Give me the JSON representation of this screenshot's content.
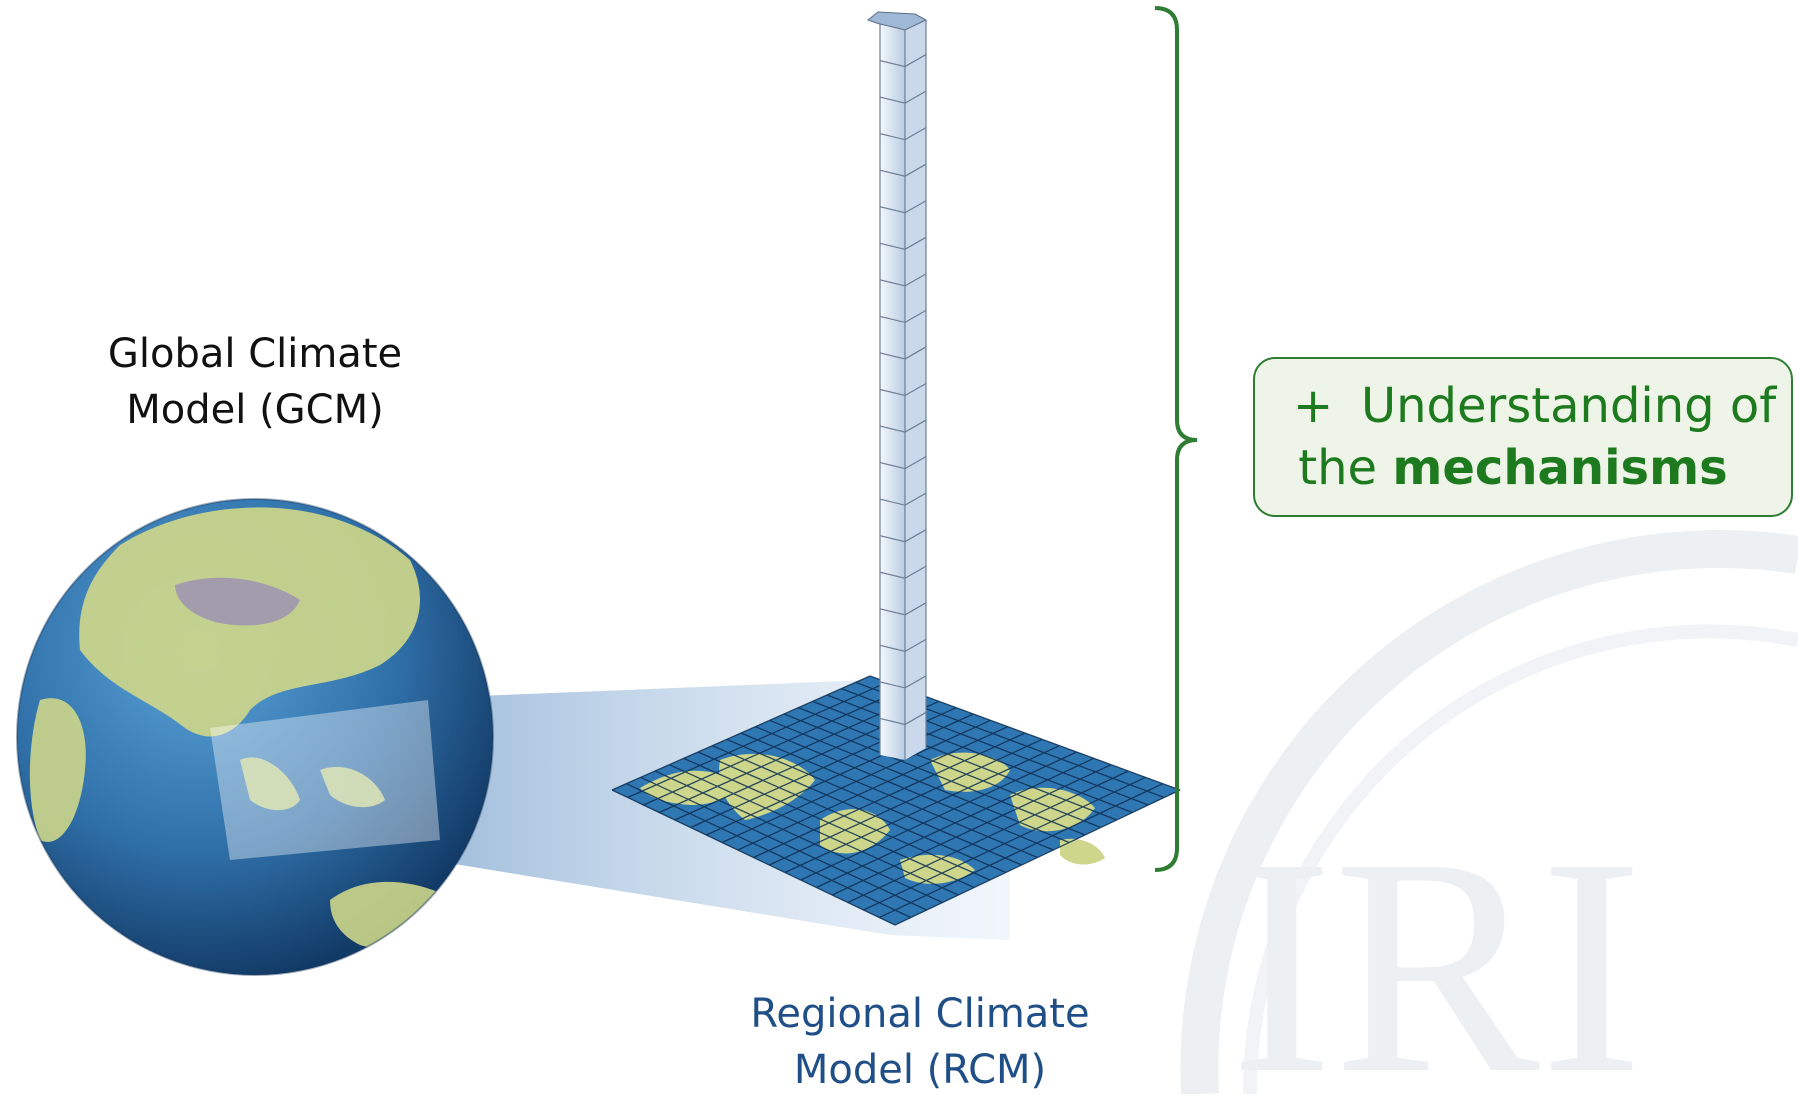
{
  "labels": {
    "gcm_line1": "Global Climate",
    "gcm_line2": "Model (GCM)",
    "rcm_line1": "Regional Climate",
    "rcm_line2": "Model (RCM)"
  },
  "callout": {
    "plus": "+",
    "line1": "Understanding of",
    "line2_prefix": "the ",
    "line2_bold": "mechanisms"
  },
  "watermark": {
    "text": "IRI"
  },
  "colors": {
    "ocean": "#2f77b3",
    "land": "#cdd68a",
    "grid_line": "#0d2e52",
    "column_face": "#dfe9f5",
    "bracket": "#2e7d32",
    "callout_fill": "#eef4e7",
    "callout_text": "#1e7a1e",
    "rcm_label": "#1f4f86",
    "watermark": "#edf0f3"
  }
}
